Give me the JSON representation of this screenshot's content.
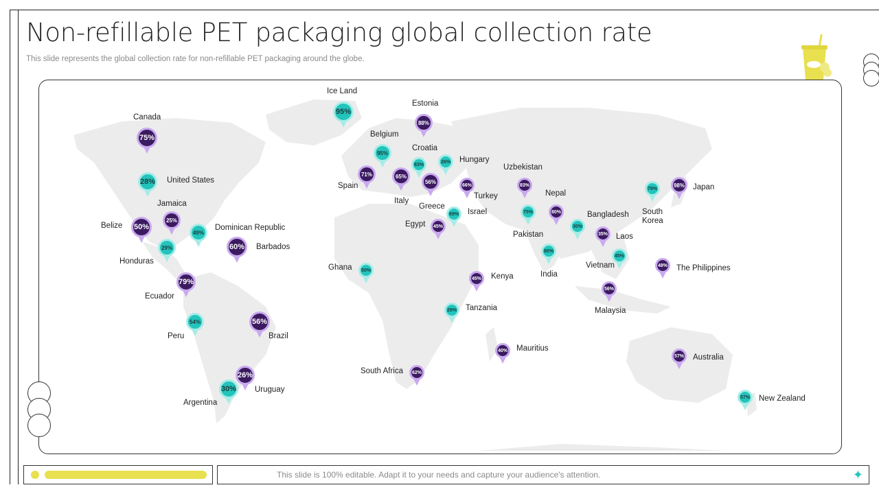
{
  "slide": {
    "title": "Non-refillable PET packaging global collection rate",
    "subtitle": "This slide represents the global collection rate for non-refillable PET packaging around the globe.",
    "footer_note": "This slide is 100% editable. Adapt it to your needs and capture your audience's attention."
  },
  "colors": {
    "accent_purple": "#3b1a60",
    "accent_teal": "#23c4bc",
    "accent_yellow": "#e8e04e"
  },
  "markers": [
    {
      "country": "Canada",
      "rate": "75%",
      "color": "purple"
    },
    {
      "country": "United States",
      "rate": "28%",
      "color": "teal"
    },
    {
      "country": "Jamaica",
      "rate": "25%",
      "color": "purple"
    },
    {
      "country": "Belize",
      "rate": "50%",
      "color": "purple"
    },
    {
      "country": "Dominican Republic",
      "rate": "49%",
      "color": "teal"
    },
    {
      "country": "Honduras",
      "rate": "29%",
      "color": "teal"
    },
    {
      "country": "Barbados",
      "rate": "60%",
      "color": "purple"
    },
    {
      "country": "Ecuador",
      "rate": "79%",
      "color": "purple"
    },
    {
      "country": "Peru",
      "rate": "54%",
      "color": "teal"
    },
    {
      "country": "Brazil",
      "rate": "56%",
      "color": "purple"
    },
    {
      "country": "Uruguay",
      "rate": "26%",
      "color": "purple"
    },
    {
      "country": "Argentina",
      "rate": "30%",
      "color": "teal"
    },
    {
      "country": "Ice Land",
      "rate": "95%",
      "color": "teal"
    },
    {
      "country": "Estonia",
      "rate": "88%",
      "color": "purple"
    },
    {
      "country": "Belgium",
      "rate": "95%",
      "color": "teal"
    },
    {
      "country": "Croatia",
      "rate": "83%",
      "color": "teal"
    },
    {
      "country": "Hungary",
      "rate": "26%",
      "color": "teal"
    },
    {
      "country": "Spain",
      "rate": "71%",
      "color": "purple"
    },
    {
      "country": "Italy",
      "rate": "65%",
      "color": "purple"
    },
    {
      "country": "Greece",
      "rate": "56%",
      "color": "purple"
    },
    {
      "country": "Turkey",
      "rate": "66%",
      "color": "purple"
    },
    {
      "country": "Israel",
      "rate": "69%",
      "color": "teal"
    },
    {
      "country": "Egypt",
      "rate": "45%",
      "color": "purple"
    },
    {
      "country": "Ghana",
      "rate": "50%",
      "color": "teal"
    },
    {
      "country": "Kenya",
      "rate": "45%",
      "color": "purple"
    },
    {
      "country": "Tanzania",
      "rate": "29%",
      "color": "teal"
    },
    {
      "country": "South Africa",
      "rate": "62%",
      "color": "purple"
    },
    {
      "country": "Mauritius",
      "rate": "40%",
      "color": "purple"
    },
    {
      "country": "Uzbekistan",
      "rate": "83%",
      "color": "purple"
    },
    {
      "country": "Pakistan",
      "rate": "75%",
      "color": "teal"
    },
    {
      "country": "Nepal",
      "rate": "80%",
      "color": "purple"
    },
    {
      "country": "India",
      "rate": "80%",
      "color": "teal"
    },
    {
      "country": "Bangladesh",
      "rate": "30%",
      "color": "teal"
    },
    {
      "country": "Laos",
      "rate": "35%",
      "color": "purple"
    },
    {
      "country": "Vietnam",
      "rate": "45%",
      "color": "teal"
    },
    {
      "country": "Malaysia",
      "rate": "56%",
      "color": "purple"
    },
    {
      "country": "The Philippines",
      "rate": "48%",
      "color": "purple"
    },
    {
      "country": "South Korea",
      "rate": "79%",
      "color": "teal"
    },
    {
      "country": "Japan",
      "rate": "98%",
      "color": "purple"
    },
    {
      "country": "Australia",
      "rate": "57%",
      "color": "purple"
    },
    {
      "country": "New Zealand",
      "rate": "57%",
      "color": "teal"
    }
  ]
}
